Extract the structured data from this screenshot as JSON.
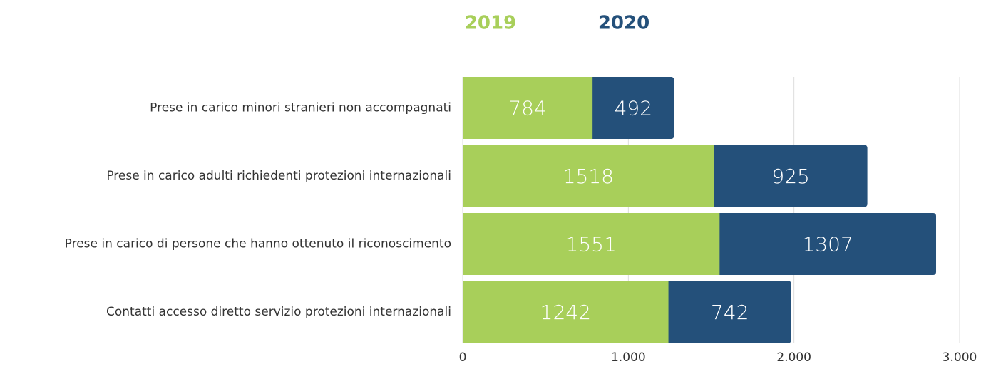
{
  "chart_data": {
    "type": "stacked-hbar",
    "categories": [
      "Prese in carico minori stranieri non accompagnati",
      "Prese in carico adulti richiedenti protezioni internazionali",
      "Prese in carico di persone che hanno ottenuto il riconoscimento",
      "Contatti accesso diretto servizio protezioni internazionali"
    ],
    "series": [
      {
        "name": "2019",
        "color": "#a8cf5a",
        "values": [
          784,
          1518,
          1551,
          1242
        ]
      },
      {
        "name": "2020",
        "color": "#24507a",
        "values": [
          492,
          925,
          1307,
          742
        ]
      }
    ],
    "xlim": [
      0,
      3000
    ],
    "xticks": [
      0,
      {
        "value": 1000,
        "label": "1.000"
      },
      {
        "value": 2000,
        "label": "2.000"
      },
      {
        "value": 3000,
        "label": "3.000"
      }
    ],
    "grid": true
  }
}
